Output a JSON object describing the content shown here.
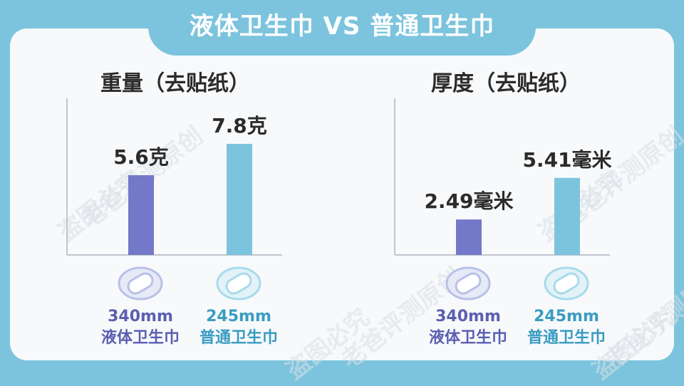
{
  "header": {
    "title": "液体卫生巾 VS 普通卫生巾"
  },
  "watermark": {
    "line1": "老爸评测原创",
    "line2": "盗图必究"
  },
  "chart_data": [
    {
      "type": "bar",
      "title": "重量（去贴纸）",
      "categories": [
        "340mm\n液体卫生巾",
        "245mm\n普通卫生巾"
      ],
      "values": [
        5.6,
        7.8
      ],
      "value_labels": [
        "5.6克",
        "7.8克"
      ],
      "unit": "克",
      "ylim": [
        0,
        10
      ],
      "grid": false,
      "colors": [
        "#7378c8",
        "#7cc4de"
      ]
    },
    {
      "type": "bar",
      "title": "厚度（去贴纸）",
      "categories": [
        "340mm\n液体卫生巾",
        "245mm\n普通卫生巾"
      ],
      "values": [
        2.49,
        5.41
      ],
      "value_labels": [
        "2.49毫米",
        "5.41毫米"
      ],
      "unit": "毫米",
      "ylim": [
        0,
        10
      ],
      "grid": false,
      "colors": [
        "#7378c8",
        "#7cc4de"
      ]
    }
  ],
  "labels": {
    "left": [
      {
        "size": "340mm",
        "name": "液体卫生巾"
      },
      {
        "size": "245mm",
        "name": "普通卫生巾"
      }
    ],
    "right": [
      {
        "size": "340mm",
        "name": "液体卫生巾"
      },
      {
        "size": "245mm",
        "name": "普通卫生巾"
      }
    ]
  },
  "icons": {
    "pad": "sanitary-pad-icon"
  },
  "colors": {
    "frame": "#7cc4de",
    "purple_bar": "#7378c8",
    "blue_bar": "#7cc4de"
  }
}
